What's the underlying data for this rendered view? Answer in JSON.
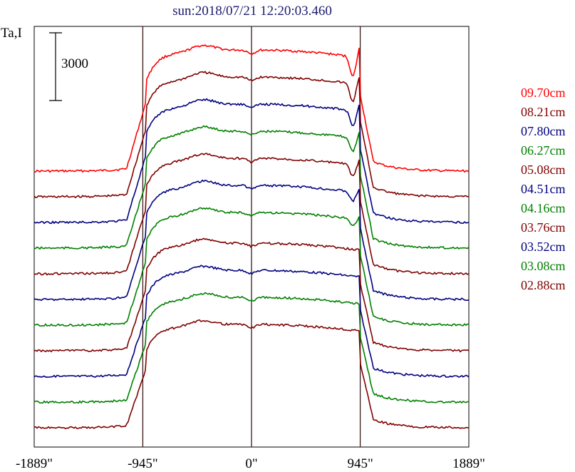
{
  "chart_data": {
    "type": "line",
    "title": "sun:2018/07/21 12:20:03.460",
    "ylabel": "Ta,I",
    "scale_bar_label": "3000",
    "scale_bar_value": 3000,
    "xlim": [
      -1889,
      1889
    ],
    "x_ticks": [
      -1889,
      -945,
      0,
      945,
      1889
    ],
    "x_tick_labels": [
      "-1889\"",
      "-945\"",
      "0\"",
      "945\"",
      "1889\""
    ],
    "vertical_lines_at": [
      -945,
      0,
      945
    ],
    "grid": false,
    "legend_position": "right",
    "series": [
      {
        "name": "09.70cm",
        "color": "#ff0000",
        "trace_kind": "limb_dip"
      },
      {
        "name": "08.21cm",
        "color": "#800000",
        "trace_kind": "limb_dip"
      },
      {
        "name": "07.80cm",
        "color": "#000080",
        "trace_kind": "limb_dip"
      },
      {
        "name": "06.27cm",
        "color": "#008000",
        "trace_kind": "limb_dip"
      },
      {
        "name": "05.08cm",
        "color": "#800000",
        "trace_kind": "limb_dip"
      },
      {
        "name": "04.51cm",
        "color": "#000080",
        "trace_kind": "limb_dip"
      },
      {
        "name": "04.16cm",
        "color": "#008000",
        "trace_kind": "limb_dip"
      },
      {
        "name": "03.76cm",
        "color": "#800000",
        "trace_kind": "flat"
      },
      {
        "name": "03.52cm",
        "color": "#000080",
        "trace_kind": "flat"
      },
      {
        "name": "03.08cm",
        "color": "#008000",
        "trace_kind": "flat"
      },
      {
        "name": "02.88cm",
        "color": "#800000",
        "trace_kind": "flat"
      }
    ]
  }
}
